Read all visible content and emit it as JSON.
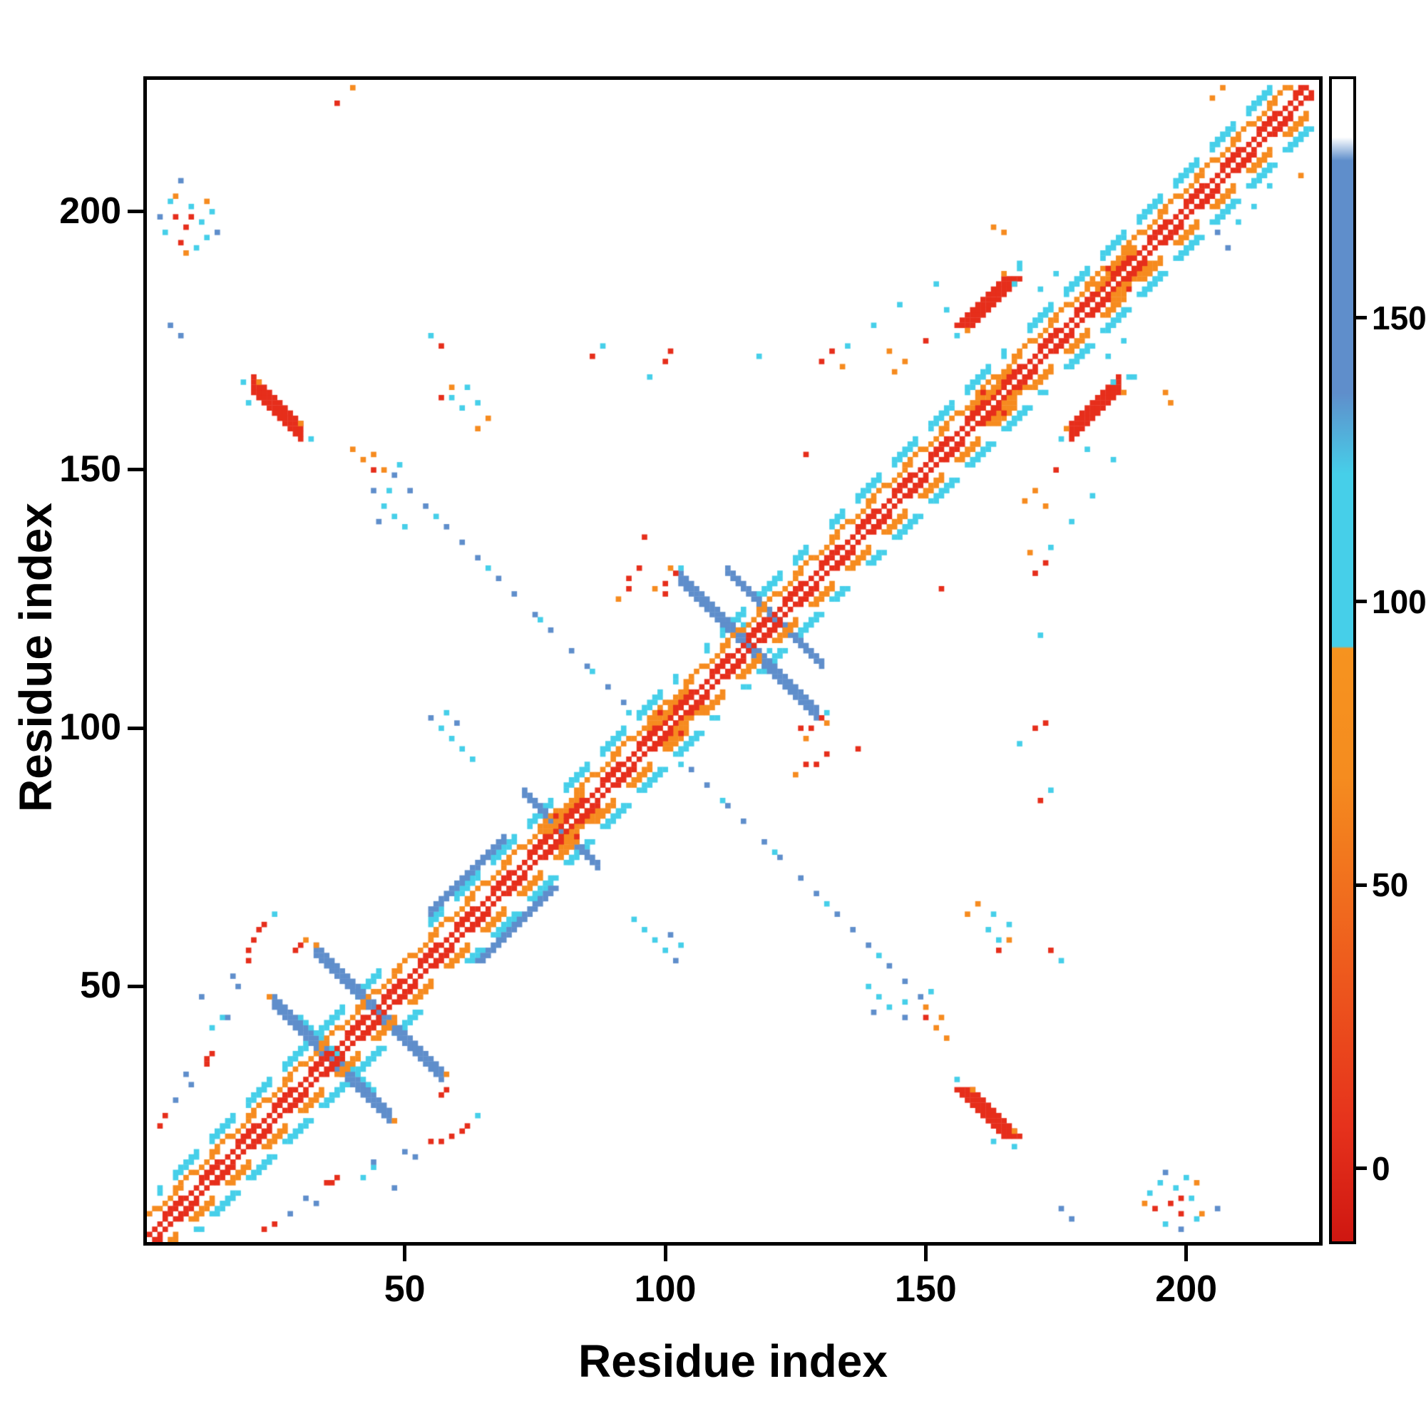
{
  "chart_data": {
    "type": "heatmap",
    "variant": "protein-residue-contact-map",
    "title": "",
    "xlabel": "Residue index",
    "ylabel": "Residue index",
    "x_range": [
      1,
      225
    ],
    "y_range": [
      1,
      225
    ],
    "x_ticks": [
      50,
      100,
      150,
      200
    ],
    "y_ticks": [
      50,
      100,
      150,
      200
    ],
    "grid": false,
    "legend_position": "none",
    "colorbar": {
      "ticks": [
        0,
        50,
        100,
        150
      ],
      "domain": [
        -13,
        192
      ],
      "stops": [
        [
          0.0,
          "#cf1711"
        ],
        [
          0.1,
          "#e6321c"
        ],
        [
          0.24,
          "#ee5c1d"
        ],
        [
          0.4,
          "#f58c1f"
        ],
        [
          0.51,
          "#f6931f"
        ],
        [
          0.512,
          "#46cfe9"
        ],
        [
          0.66,
          "#46cfe9"
        ],
        [
          0.73,
          "#5f8ecb"
        ],
        [
          0.93,
          "#5f8ecb"
        ],
        [
          0.95,
          "#ffffff"
        ],
        [
          1.0,
          "#ffffff"
        ]
      ]
    },
    "palette": {
      "red": "#e62e1b",
      "orange": "#f68b1f",
      "cyan": "#46cfe9",
      "blue": "#5f8ecb"
    },
    "features": [
      {
        "k": "diag",
        "x": 3,
        "y": 10,
        "len": 45,
        "w": 2,
        "c": "cyan",
        "g": 2,
        "m": 1
      },
      {
        "k": "diag",
        "x": 55,
        "y": 62,
        "len": 48,
        "w": 2,
        "c": "cyan",
        "g": 2,
        "m": 1
      },
      {
        "k": "diag",
        "x": 108,
        "y": 115,
        "len": 20,
        "w": 2,
        "c": "cyan",
        "g": 2,
        "m": 1
      },
      {
        "k": "diag",
        "x": 132,
        "y": 139,
        "len": 34,
        "w": 2,
        "c": "cyan",
        "g": 2,
        "m": 1
      },
      {
        "k": "diag",
        "x": 170,
        "y": 177,
        "len": 50,
        "w": 2,
        "c": "cyan",
        "g": 2,
        "m": 1
      },
      {
        "k": "diag",
        "x": 55,
        "y": 64,
        "len": 15,
        "w": 2,
        "c": "blue",
        "m": 1
      },
      {
        "k": "anti",
        "x": 25,
        "y": 47,
        "len": 23,
        "w": 3,
        "c": "blue"
      },
      {
        "k": "anti",
        "x": 33,
        "y": 57,
        "len": 25,
        "w": 3,
        "c": "blue"
      },
      {
        "k": "anti",
        "x": 30,
        "y": 44,
        "len": 15,
        "w": 1,
        "c": "cyan"
      },
      {
        "k": "anti",
        "x": 73,
        "y": 87,
        "len": 15,
        "w": 2,
        "c": "blue"
      },
      {
        "k": "anti",
        "x": 103,
        "y": 129,
        "len": 27,
        "w": 3,
        "c": "blue"
      },
      {
        "k": "anti",
        "x": 112,
        "y": 130,
        "len": 19,
        "w": 2,
        "c": "blue"
      },
      {
        "k": "dots",
        "c": "cyan",
        "pts": [
          [
            103,
            131
          ],
          [
            131,
            103
          ],
          [
            115,
            120
          ],
          [
            120,
            115
          ]
        ]
      },
      {
        "k": "dots",
        "c": "blue",
        "m": 1,
        "pts": [
          [
            48,
            149
          ],
          [
            51,
            146
          ],
          [
            54,
            143
          ],
          [
            58,
            139
          ],
          [
            61,
            136
          ],
          [
            64,
            133
          ],
          [
            68,
            129
          ],
          [
            71,
            126
          ],
          [
            75,
            122
          ],
          [
            78,
            119
          ],
          [
            82,
            115
          ],
          [
            85,
            112
          ],
          [
            89,
            108
          ],
          [
            92,
            105
          ]
        ]
      },
      {
        "k": "dots",
        "c": "cyan",
        "m": 1,
        "pts": [
          [
            49,
            151
          ],
          [
            56,
            141
          ],
          [
            66,
            131
          ],
          [
            76,
            121
          ],
          [
            86,
            111
          ],
          [
            93,
            103
          ]
        ]
      },
      {
        "k": "dots",
        "c": "orange",
        "m": 1,
        "pts": [
          [
            44,
            153
          ],
          [
            46,
            150
          ]
        ]
      },
      {
        "k": "dots",
        "c": "cyan",
        "m": 1,
        "pts": [
          [
            46,
            143
          ],
          [
            48,
            141
          ],
          [
            50,
            139
          ],
          [
            47,
            146
          ]
        ]
      },
      {
        "k": "dots",
        "c": "blue",
        "m": 1,
        "pts": [
          [
            44,
            146
          ],
          [
            45,
            140
          ]
        ]
      },
      {
        "k": "dots",
        "c": "cyan",
        "m": 1,
        "pts": [
          [
            57,
            100
          ],
          [
            59,
            98
          ],
          [
            61,
            96
          ],
          [
            58,
            103
          ],
          [
            63,
            94
          ]
        ]
      },
      {
        "k": "dots",
        "c": "blue",
        "m": 1,
        "pts": [
          [
            55,
            102
          ],
          [
            60,
            101
          ]
        ]
      },
      {
        "k": "anti",
        "x": 21,
        "y": 166,
        "len": 10,
        "w": 4,
        "c": "red",
        "m": 1
      },
      {
        "k": "dots",
        "c": "cyan",
        "m": 1,
        "pts": [
          [
            19,
            167
          ],
          [
            32,
            156
          ],
          [
            20,
            163
          ]
        ]
      },
      {
        "k": "dots",
        "c": "orange",
        "m": 1,
        "pts": [
          [
            30,
            159
          ],
          [
            22,
            167
          ]
        ]
      },
      {
        "k": "diag",
        "x": 178,
        "y": 157,
        "len": 10,
        "w": 4,
        "c": "red",
        "m": 1
      },
      {
        "k": "dots",
        "c": "cyan",
        "m": 1,
        "pts": [
          [
            176,
            156
          ],
          [
            189,
            168
          ],
          [
            181,
            154
          ],
          [
            186,
            167
          ]
        ]
      },
      {
        "k": "dots",
        "c": "orange",
        "m": 1,
        "pts": [
          [
            177,
            158
          ],
          [
            188,
            165
          ]
        ]
      },
      {
        "k": "dots",
        "c": "red",
        "m": 1,
        "pts": [
          [
            6,
            199
          ],
          [
            8,
            197
          ],
          [
            7,
            194
          ],
          [
            9,
            199
          ]
        ]
      },
      {
        "k": "dots",
        "c": "cyan",
        "m": 1,
        "pts": [
          [
            5,
            202
          ],
          [
            9,
            201
          ],
          [
            11,
            198
          ],
          [
            12,
            195
          ],
          [
            10,
            193
          ],
          [
            4,
            196
          ],
          [
            13,
            200
          ]
        ]
      },
      {
        "k": "dots",
        "c": "orange",
        "m": 1,
        "pts": [
          [
            6,
            203
          ],
          [
            12,
            202
          ],
          [
            8,
            192
          ]
        ]
      },
      {
        "k": "dots",
        "c": "blue",
        "m": 1,
        "pts": [
          [
            14,
            196
          ],
          [
            3,
            199
          ],
          [
            7,
            206
          ]
        ]
      },
      {
        "k": "dots",
        "c": "blue",
        "m": 1,
        "pts": [
          [
            5,
            178
          ],
          [
            7,
            176
          ],
          [
            8,
            33
          ],
          [
            9,
            31
          ],
          [
            6,
            28
          ],
          [
            11,
            48
          ]
        ]
      },
      {
        "k": "dots",
        "c": "red",
        "m": 1,
        "pts": [
          [
            4,
            25
          ],
          [
            3,
            23
          ]
        ]
      },
      {
        "k": "dots",
        "c": "cyan",
        "m": 1,
        "pts": [
          [
            13,
            42
          ],
          [
            15,
            44
          ]
        ]
      },
      {
        "k": "dots",
        "c": "red",
        "m": 1,
        "pts": [
          [
            20,
            57
          ],
          [
            21,
            59
          ],
          [
            22,
            61
          ],
          [
            23,
            62
          ],
          [
            20,
            55
          ]
        ]
      },
      {
        "k": "dots",
        "c": "cyan",
        "m": 1,
        "pts": [
          [
            25,
            64
          ]
        ]
      },
      {
        "k": "dots",
        "c": "red",
        "m": 1,
        "pts": [
          [
            35,
            12
          ],
          [
            36,
            12
          ],
          [
            37,
            13
          ]
        ]
      },
      {
        "k": "dots",
        "c": "blue",
        "m": 1,
        "pts": [
          [
            50,
            18
          ],
          [
            52,
            17
          ],
          [
            44,
            16
          ]
        ]
      },
      {
        "k": "dots",
        "c": "red",
        "m": 1,
        "pts": [
          [
            57,
            164
          ],
          [
            86,
            172
          ],
          [
            100,
            171
          ],
          [
            101,
            173
          ],
          [
            130,
            171
          ],
          [
            132,
            173
          ],
          [
            153,
            127
          ],
          [
            175,
            150
          ],
          [
            137,
            96
          ]
        ]
      },
      {
        "k": "dots",
        "c": "orange",
        "m": 1,
        "pts": [
          [
            59,
            166
          ],
          [
            134,
            170
          ],
          [
            169,
            144
          ],
          [
            171,
            146
          ],
          [
            173,
            143
          ],
          [
            196,
            165
          ],
          [
            197,
            163
          ],
          [
            91,
            125
          ]
        ]
      },
      {
        "k": "dots",
        "c": "cyan",
        "m": 1,
        "pts": [
          [
            88,
            174
          ],
          [
            97,
            168
          ],
          [
            118,
            172
          ],
          [
            140,
            178
          ],
          [
            145,
            182
          ],
          [
            185,
            172
          ],
          [
            188,
            175
          ],
          [
            190,
            168
          ],
          [
            135,
            174
          ],
          [
            152,
            186
          ]
        ]
      },
      {
        "k": "dots",
        "c": "red",
        "m": 1,
        "pts": [
          [
            93,
            127
          ],
          [
            93,
            129
          ],
          [
            95,
            131
          ]
        ]
      },
      {
        "k": "dots",
        "c": "cyan",
        "m": 1,
        "pts": [
          [
            162,
            61
          ],
          [
            164,
            59
          ],
          [
            166,
            62
          ],
          [
            163,
            64
          ]
        ]
      },
      {
        "k": "dots",
        "c": "orange",
        "m": 1,
        "pts": [
          [
            158,
            64
          ],
          [
            160,
            66
          ],
          [
            152,
            42
          ],
          [
            154,
            40
          ]
        ]
      },
      {
        "k": "dots",
        "c": "red",
        "m": 1,
        "pts": [
          [
            174,
            57
          ],
          [
            150,
            44
          ]
        ]
      },
      {
        "k": "dots",
        "c": "cyan",
        "m": 1,
        "pts": [
          [
            176,
            55
          ]
        ]
      },
      {
        "k": "dots",
        "c": "orange",
        "pts": [
          [
            205,
            222
          ],
          [
            207,
            224
          ],
          [
            40,
            224
          ],
          [
            222,
            207
          ]
        ]
      },
      {
        "k": "dots",
        "c": "red",
        "pts": [
          [
            37,
            221
          ]
        ]
      },
      {
        "k": "dots",
        "c": "cyan",
        "pts": [
          [
            210,
            198
          ],
          [
            213,
            201
          ],
          [
            216,
            205
          ]
        ]
      },
      {
        "k": "dots",
        "c": "blue",
        "pts": [
          [
            206,
            196
          ],
          [
            208,
            193
          ]
        ]
      },
      {
        "k": "dots",
        "c": "red",
        "m": 1,
        "pts": [
          [
            30,
            58
          ],
          [
            29,
            57
          ]
        ]
      },
      {
        "k": "dots",
        "c": "orange",
        "pts": [
          [
            33,
            58
          ],
          [
            58,
            33
          ],
          [
            24,
            48
          ],
          [
            48,
            24
          ],
          [
            31,
            59
          ]
        ]
      },
      {
        "k": "dots",
        "c": "red",
        "m": 1,
        "pts": [
          [
            100,
            128
          ],
          [
            100,
            126
          ],
          [
            102,
            130
          ]
        ]
      },
      {
        "k": "dots",
        "c": "orange",
        "m": 1,
        "pts": [
          [
            98,
            127
          ],
          [
            101,
            131
          ]
        ]
      },
      {
        "k": "diag",
        "x": 77,
        "y": 79,
        "len": 8,
        "w": 3,
        "c": "orange",
        "m": 1
      },
      {
        "k": "diag",
        "x": 97,
        "y": 99,
        "len": 8,
        "w": 3,
        "c": "orange",
        "m": 1
      },
      {
        "k": "diag",
        "x": 159,
        "y": 161,
        "len": 8,
        "w": 3,
        "c": "orange",
        "m": 1
      },
      {
        "k": "diag",
        "x": 183,
        "y": 185,
        "len": 8,
        "w": 3,
        "c": "orange",
        "m": 1
      },
      {
        "k": "diag",
        "x": 1,
        "y": 5,
        "len": 220,
        "w": 1,
        "c": "orange",
        "g": 2
      },
      {
        "k": "diag",
        "x": 1,
        "y": 6,
        "len": 219,
        "w": 1,
        "c": "orange",
        "g": 3
      },
      {
        "k": "diag",
        "x": 5,
        "y": 1,
        "len": 220,
        "w": 1,
        "c": "orange",
        "g": 2
      },
      {
        "k": "diag",
        "x": 6,
        "y": 1,
        "len": 219,
        "w": 1,
        "c": "orange",
        "g": 3
      },
      {
        "k": "dots",
        "c": "red",
        "m": 1,
        "pts": [
          [
            79,
            83
          ],
          [
            99,
            103
          ],
          [
            161,
            165
          ],
          [
            185,
            189
          ]
        ]
      },
      {
        "k": "diag",
        "x": 1,
        "y": 2,
        "len": 223,
        "w": 1,
        "c": "red"
      },
      {
        "k": "diag",
        "x": 1,
        "y": 3,
        "len": 222,
        "w": 1,
        "c": "red",
        "g": 3
      },
      {
        "k": "diag",
        "x": 2,
        "y": 1,
        "len": 223,
        "w": 1,
        "c": "red"
      },
      {
        "k": "diag",
        "x": 3,
        "y": 1,
        "len": 222,
        "w": 1,
        "c": "red",
        "g": 3
      }
    ]
  }
}
